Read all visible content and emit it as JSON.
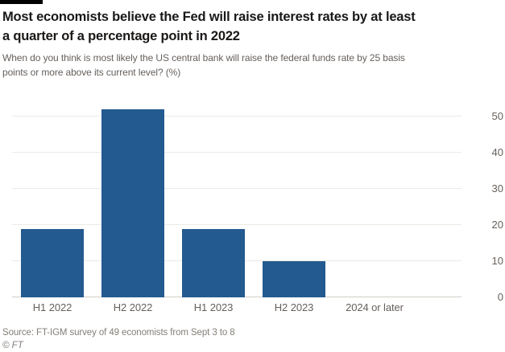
{
  "header": {
    "title": "Most economists believe the Fed will raise interest rates by at least\na quarter of a percentage point in 2022",
    "subtitle": "When do you think is most likely the US central bank will raise the federal funds rate by 25 basis\npoints or more above its current level? (%)"
  },
  "chart_data": {
    "type": "bar",
    "title": "Most economists believe the Fed will raise interest rates by at least a quarter of a percentage point in 2022",
    "subtitle": "When do you think is most likely the US central bank will raise the federal funds rate by 25 basis points or more above its current level? (%)",
    "categories": [
      "H1 2022",
      "H2 2022",
      "H1 2023",
      "H2 2023",
      "2024 or later"
    ],
    "values": [
      19,
      52,
      19,
      10,
      0
    ],
    "xlabel": "",
    "ylabel": "",
    "ylim": [
      0,
      54
    ],
    "yticks": [
      0,
      10,
      20,
      30,
      40,
      50
    ],
    "grid": true,
    "legend": "none",
    "ytick_side": "right",
    "bar_color": "#235a8f",
    "gridline_color": "#eceae5",
    "baseline_color": "#d2cec6",
    "axis_label_color": "#66605c"
  },
  "footer": {
    "source": "Source: FT-IGM survey of 49 economists from Sept 3 to 8",
    "copyright": "© FT"
  }
}
